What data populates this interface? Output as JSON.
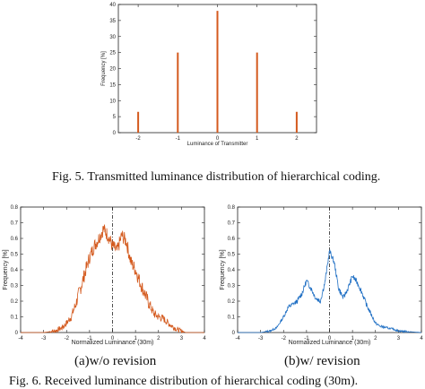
{
  "figure5": {
    "caption": "Fig. 5.   Transmitted luminance distribution of hierarchical coding."
  },
  "figure6": {
    "caption_partial": "Fig. 6.   Received luminance distribution of hierarchical coding (30m).",
    "subcaption_a": "(a)w/o revision",
    "subcaption_b": "(b)w/ revision"
  },
  "colors": {
    "orange": "#d45a1e",
    "blue": "#1f6fc4",
    "axis": "#222222"
  },
  "chart_data": [
    {
      "id": "fig5",
      "type": "bar",
      "title": "",
      "xlabel": "Luminance of Transmitter",
      "ylabel": "Frequency [%]",
      "categories": [
        "-2",
        "-1",
        "0",
        "1",
        "2"
      ],
      "x": [
        -2,
        -1,
        0,
        1,
        2
      ],
      "values": [
        6.5,
        25,
        38,
        25,
        6.5
      ],
      "xlim": [
        -2.5,
        2.5
      ],
      "ylim": [
        0,
        40
      ],
      "xticks": [
        "-2",
        "-1",
        "0",
        "1",
        "2"
      ],
      "yticks": [
        "0",
        "5",
        "10",
        "15",
        "20",
        "25",
        "30",
        "35",
        "40"
      ],
      "color": "#d45a1e"
    },
    {
      "id": "fig6a",
      "type": "line",
      "title": "",
      "xlabel": "Normalized Luminance (30m)",
      "ylabel": "Frequency [%]",
      "xlim": [
        -4,
        4
      ],
      "ylim": [
        0,
        0.8
      ],
      "xticks": [
        "-4",
        "-3",
        "-2",
        "-1",
        "0",
        "1",
        "2",
        "3",
        "4"
      ],
      "yticks": [
        "0",
        "0.1",
        "0.2",
        "0.3",
        "0.4",
        "0.5",
        "0.6",
        "0.7",
        "0.8"
      ],
      "x": [
        -4,
        -3,
        -2.5,
        -2.2,
        -2.0,
        -1.8,
        -1.6,
        -1.4,
        -1.2,
        -1.0,
        -0.8,
        -0.6,
        -0.4,
        -0.2,
        0,
        0.2,
        0.4,
        0.6,
        0.8,
        1.0,
        1.2,
        1.4,
        1.6,
        1.8,
        2.0,
        2.2,
        2.5,
        2.8,
        3.0,
        3.2,
        4
      ],
      "y": [
        0,
        0,
        0.01,
        0.03,
        0.06,
        0.1,
        0.18,
        0.28,
        0.38,
        0.48,
        0.55,
        0.6,
        0.66,
        0.62,
        0.55,
        0.52,
        0.62,
        0.58,
        0.45,
        0.4,
        0.32,
        0.25,
        0.18,
        0.12,
        0.1,
        0.09,
        0.05,
        0.02,
        0.01,
        0,
        0
      ],
      "color": "#d45a1e"
    },
    {
      "id": "fig6b",
      "type": "line",
      "title": "",
      "xlabel": "Normalized Luminance (30m)",
      "ylabel": "Frequency [%]",
      "xlim": [
        -4,
        4
      ],
      "ylim": [
        0,
        0.8
      ],
      "xticks": [
        "-4",
        "-3",
        "-2",
        "-1",
        "0",
        "1",
        "2",
        "3",
        "4"
      ],
      "yticks": [
        "0",
        "0.1",
        "0.2",
        "0.3",
        "0.4",
        "0.5",
        "0.6",
        "0.7",
        "0.8"
      ],
      "x": [
        -4,
        -3,
        -2.6,
        -2.3,
        -2.0,
        -1.8,
        -1.6,
        -1.4,
        -1.2,
        -1.0,
        -0.8,
        -0.6,
        -0.4,
        -0.2,
        0,
        0.2,
        0.4,
        0.6,
        0.8,
        1.0,
        1.2,
        1.4,
        1.6,
        1.8,
        2.0,
        2.2,
        2.5,
        2.8,
        3.0,
        4
      ],
      "y": [
        0,
        0,
        0.01,
        0.03,
        0.1,
        0.16,
        0.18,
        0.2,
        0.25,
        0.33,
        0.28,
        0.22,
        0.2,
        0.32,
        0.52,
        0.45,
        0.28,
        0.22,
        0.28,
        0.36,
        0.32,
        0.26,
        0.18,
        0.12,
        0.06,
        0.04,
        0.03,
        0.02,
        0.01,
        0
      ],
      "color": "#1f6fc4"
    }
  ]
}
